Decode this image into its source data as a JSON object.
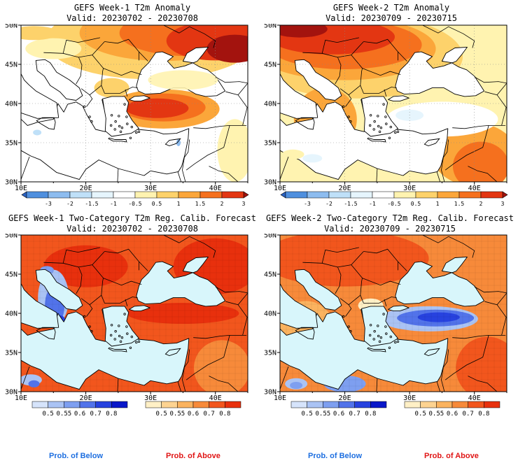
{
  "maps": [
    {
      "title": "GEFS Week-1 T2m Anomaly",
      "valid": "Valid: 20230702 - 20230708"
    },
    {
      "title": "GEFS Week-2 T2m Anomaly",
      "valid": "Valid: 20230709 - 20230715"
    },
    {
      "title": "GEFS Week-1 Two-Category T2m Reg. Calib. Forecast",
      "valid": "Valid: 20230702 - 20230708"
    },
    {
      "title": "GEFS Week-2 Two-Category T2m Reg. Calib. Forecast",
      "valid": "Valid: 20230709 - 20230715"
    }
  ],
  "lat_labels": [
    "50N",
    "45N",
    "40N",
    "35N",
    "30N"
  ],
  "lon_labels": [
    "10E",
    "20E",
    "30E",
    "40E"
  ],
  "anomaly_colorbar": {
    "labels": [
      "-3",
      "-2",
      "-1.5",
      "-1",
      "-0.5",
      "0.5",
      "1",
      "1.5",
      "2",
      "3"
    ],
    "colors": [
      "#2b63c4",
      "#4f8fde",
      "#8dbcef",
      "#bfe0f8",
      "#e6f5fd",
      "#ffffff",
      "#fff3b0",
      "#fdd26b",
      "#fba63a",
      "#f5701e",
      "#e33612",
      "#a3130e"
    ]
  },
  "prob_below_colorbar": {
    "labels": [
      "0.5",
      "0.55",
      "0.6",
      "0.7",
      "0.8"
    ],
    "colors": [
      "#d6e4fb",
      "#aac3f4",
      "#7e9ff0",
      "#5273ea",
      "#2742df",
      "#0a18c9"
    ]
  },
  "prob_above_colorbar": {
    "labels": [
      "0.5",
      "0.55",
      "0.6",
      "0.7",
      "0.8"
    ],
    "colors": [
      "#fff0c6",
      "#fdd391",
      "#fbb35f",
      "#f78a3a",
      "#f2561d",
      "#e8300d"
    ]
  },
  "legend": {
    "below": "Prob. of Below",
    "above": "Prob. of Above",
    "below_color": "#1e6fe0",
    "above_color": "#e01515"
  }
}
